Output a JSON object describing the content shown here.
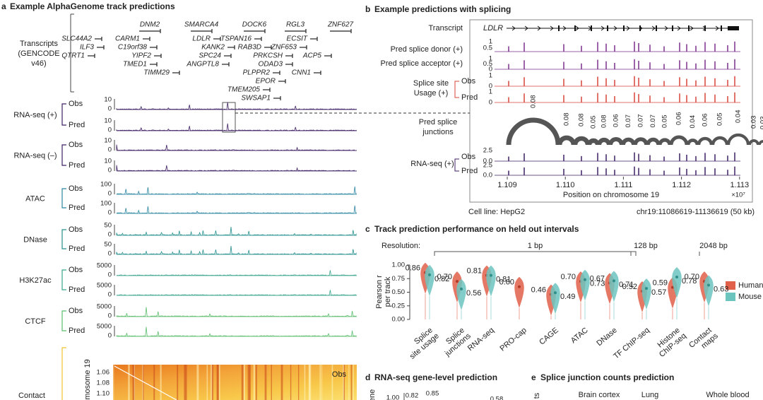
{
  "panel_a": {
    "label": "a",
    "title": "Example AlphaGenome track predictions",
    "transcripts_label": [
      "Transcripts",
      "(GENCODE",
      "v46)"
    ],
    "genes": [
      "DNM2",
      "SMARCA4",
      "DOCK6",
      "RGL3",
      "ZNF627",
      "SLC44A2",
      "CARM1",
      "LDLR",
      "TSPAN16",
      "ECSIT",
      "ILF3",
      "C19orf38",
      "KANK2",
      "RAB3D",
      "ZNF653",
      "QTRT1",
      "YIPF2",
      "SPC24",
      "PRKCSH",
      "ACP5",
      "TMED1",
      "ANGPTL8",
      "ODAD3",
      "CNN1",
      "TIMM29",
      "PLPPR2",
      "EPOR",
      "TMEM205",
      "SWSAP1"
    ],
    "tracks": [
      {
        "name": "RNA-seq (+)",
        "rows": [
          {
            "label": "Obs",
            "ticks": [
              "10",
              "0"
            ]
          },
          {
            "label": "Pred",
            "ticks": [
              "10",
              "0"
            ]
          }
        ]
      },
      {
        "name": "RNA-seq (–)",
        "rows": [
          {
            "label": "Obs",
            "ticks": [
              "10",
              "0"
            ]
          },
          {
            "label": "Pred",
            "ticks": [
              "10",
              "0"
            ]
          }
        ]
      },
      {
        "name": "ATAC",
        "rows": [
          {
            "label": "Obs",
            "ticks": [
              "100",
              "0"
            ]
          },
          {
            "label": "Pred",
            "ticks": [
              "100",
              "0"
            ]
          }
        ]
      },
      {
        "name": "DNase",
        "rows": [
          {
            "label": "Obs",
            "ticks": [
              "50",
              "0"
            ]
          },
          {
            "label": "Pred",
            "ticks": [
              "50",
              "0"
            ]
          }
        ]
      },
      {
        "name": "H3K27ac",
        "rows": [
          {
            "label": "Obs",
            "ticks": [
              "5000",
              "0"
            ]
          },
          {
            "label": "Pred",
            "ticks": [
              "5000",
              "0"
            ]
          }
        ]
      },
      {
        "name": "CTCF",
        "rows": [
          {
            "label": "Obs",
            "ticks": [
              "5000",
              "0"
            ]
          },
          {
            "label": "Pred",
            "ticks": [
              "5000",
              "0"
            ]
          }
        ]
      }
    ],
    "contact": {
      "name": "Contact",
      "axis_label": "omosome 19",
      "ticks": [
        "1.06",
        "1.08",
        "1.10"
      ],
      "map_label": "Obs"
    }
  },
  "panel_b": {
    "label": "b",
    "title": "Example predictions with splicing",
    "transcript_label": "Transcript",
    "gene": "LDLR",
    "donor": {
      "label": "Pred splice donor (+)",
      "ticks": [
        "1",
        "0.5"
      ]
    },
    "acceptor": {
      "label": "Pred splice acceptor (+)",
      "ticks": [
        "1",
        "0.5",
        "0"
      ]
    },
    "usage": {
      "label": [
        "Splice site",
        "Usage (+)"
      ],
      "rows": [
        {
          "label": "Obs",
          "ticks": [
            "1",
            "0"
          ]
        },
        {
          "label": "Pred",
          "ticks": [
            "1",
            "0"
          ]
        }
      ]
    },
    "junctions": {
      "label": [
        "Pred splice",
        "junctions"
      ],
      "values": [
        "0.08",
        "0.08",
        "0.08",
        "0.05",
        "0.08",
        "0.06",
        "0.07",
        "0.07",
        "0.07",
        "0.05",
        "0.06",
        "0.04",
        "0.06",
        "0.05",
        "0.04",
        "0.03",
        "0.03"
      ]
    },
    "rnaseq": {
      "label": "RNA-seq (+)",
      "rows": [
        {
          "label": "Obs",
          "ticks": [
            "2.5",
            "0.0"
          ]
        },
        {
          "label": "Pred",
          "ticks": [
            "2.5",
            "0.0"
          ]
        }
      ]
    },
    "xticks": [
      "1.109",
      "1.110",
      "1.111",
      "1.112",
      "1.113"
    ],
    "xlabel": "Position on chromosome 19",
    "xscale": "×10⁷",
    "cell_line": "Cell line: HepG2",
    "region": "chr19:11086619-11136619 (50 kb)"
  },
  "panel_c": {
    "label": "c",
    "title": "Track prediction performance on held out intervals",
    "resolution_label": "Resolution:",
    "resolutions": [
      "1 bp",
      "128 bp",
      "2048 bp"
    ],
    "ylabel": [
      "Pearson r",
      "per track"
    ],
    "yticks": [
      {
        "value": 0,
        "label": "0.00"
      },
      {
        "value": 0.25,
        "label": "0.25"
      },
      {
        "value": 0.5,
        "label": "0.50"
      },
      {
        "value": 0.75,
        "label": "0.75"
      },
      {
        "value": 1,
        "label": "1.00"
      }
    ],
    "ylim": [
      0,
      1
    ],
    "categories": [
      [
        "Splice",
        "site usage"
      ],
      [
        "Splice",
        "junctions"
      ],
      [
        "RNA-seq"
      ],
      [
        "PRO-cap"
      ],
      [
        "CAGE"
      ],
      [
        "ATAC"
      ],
      [
        "DNase"
      ],
      [
        "TF ChIP-seq"
      ],
      [
        "Histone",
        "ChIP-seq"
      ],
      [
        "Contact",
        "maps"
      ]
    ],
    "series": [
      {
        "name": "Human",
        "color": "#e0604a",
        "values": [
          0.86,
          0.7,
          0.81,
          0.6,
          0.46,
          0.7,
          0.67,
          0.52,
          0.59,
          0.7
        ],
        "value_labels": [
          "0.86",
          "0.70",
          "0.81",
          "0.60",
          "0.46",
          "0.70",
          "0.67",
          "0.52",
          "0.59",
          "0.70"
        ]
      },
      {
        "name": "Mouse",
        "color": "#6cc4bf",
        "values": [
          0.82,
          0.56,
          0.81,
          null,
          0.49,
          0.73,
          0.71,
          0.57,
          0.78,
          0.63
        ],
        "value_labels": [
          "0.82",
          "0.56",
          "0.81",
          null,
          "0.49",
          "0.73",
          "0.71",
          "0.57",
          "0.78",
          "0.63"
        ]
      }
    ]
  },
  "panel_d": {
    "label": "d",
    "title": "RNA-seq gene-level prediction",
    "axis_fragment": "ene",
    "texts": [
      "1.00",
      "0.82",
      "0.85",
      "0.58"
    ]
  },
  "panel_e": {
    "label": "e",
    "title": "Splice junction counts prediction",
    "axis_fragment": "ts",
    "tissues": [
      "Brain cortex",
      "Lung",
      "Whole blood"
    ]
  }
}
